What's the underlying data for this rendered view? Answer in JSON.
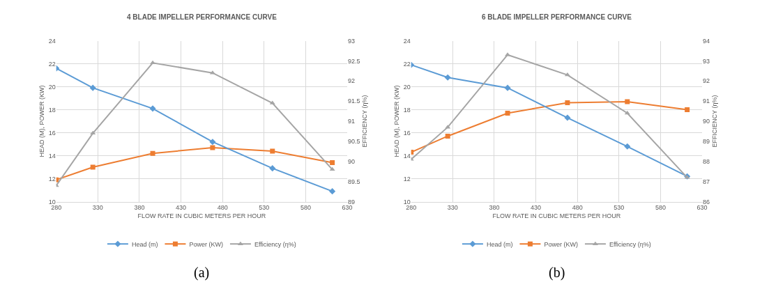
{
  "chart_data": [
    {
      "type": "line",
      "title": "4 BLADE IMPELLER PERFORMANCE CURVE",
      "xlabel": "FLOW RATE IN CUBIC METERS PER HOUR",
      "ylabel": "HEAD (M), POWER (KW)",
      "y2label": "EFFICIENCY (η%)",
      "x": [
        280,
        324,
        396,
        468,
        540,
        612
      ],
      "series": [
        {
          "name": "Head (m)",
          "color": "#5b9bd5",
          "marker": "diamond",
          "values": [
            21.6,
            19.9,
            18.1,
            15.2,
            12.9,
            10.9
          ]
        },
        {
          "name": "Power (KW)",
          "color": "#ed7d31",
          "marker": "square",
          "values": [
            11.9,
            13.0,
            14.2,
            14.7,
            14.4,
            13.4
          ]
        },
        {
          "name": "Efficiency (η%)",
          "color": "#a5a5a5",
          "marker": "triangle",
          "axis": "y2",
          "values": [
            89.4,
            90.7,
            92.45,
            92.2,
            91.45,
            89.8
          ]
        }
      ],
      "xlim": [
        280,
        630
      ],
      "xticks": [
        280,
        330,
        380,
        430,
        480,
        530,
        580,
        630
      ],
      "ylim": [
        10,
        24
      ],
      "yticks": [
        10,
        12,
        14,
        16,
        18,
        20,
        22,
        24
      ],
      "y2lim": [
        89,
        93
      ],
      "y2ticks": [
        89,
        89.5,
        90,
        90.5,
        91,
        91.5,
        92,
        92.5,
        93
      ],
      "grid": true,
      "legend": "bottom",
      "annotations": [
        "(a)"
      ]
    },
    {
      "type": "line",
      "title": "6 BLADE IMPELLER PERFORMANCE CURVE",
      "xlabel": "FLOW RATE IN CUBIC METERS PER HOUR",
      "ylabel": "HEAD (M), POWER (KW)",
      "y2label": "EFFICIENCY (η%)",
      "x": [
        280,
        324,
        396,
        468,
        540,
        612
      ],
      "series": [
        {
          "name": "Head (m)",
          "color": "#5b9bd5",
          "marker": "diamond",
          "values": [
            21.9,
            20.8,
            19.9,
            17.3,
            14.8,
            12.2
          ]
        },
        {
          "name": "Power (KW)",
          "color": "#ed7d31",
          "marker": "square",
          "values": [
            14.3,
            15.7,
            17.7,
            18.6,
            18.7,
            18.0
          ]
        },
        {
          "name": "Efficiency (η%)",
          "color": "#a5a5a5",
          "marker": "triangle",
          "axis": "y2",
          "values": [
            88.1,
            89.7,
            93.3,
            92.3,
            90.4,
            87.2
          ]
        }
      ],
      "xlim": [
        280,
        630
      ],
      "xticks": [
        280,
        330,
        380,
        430,
        480,
        530,
        580,
        630
      ],
      "ylim": [
        10,
        24
      ],
      "yticks": [
        10,
        12,
        14,
        16,
        18,
        20,
        22,
        24
      ],
      "y2lim": [
        86,
        94
      ],
      "y2ticks": [
        86,
        87,
        88,
        89,
        90,
        91,
        92,
        93,
        94
      ],
      "grid": true,
      "legend": "bottom",
      "annotations": [
        "(b)"
      ]
    }
  ]
}
